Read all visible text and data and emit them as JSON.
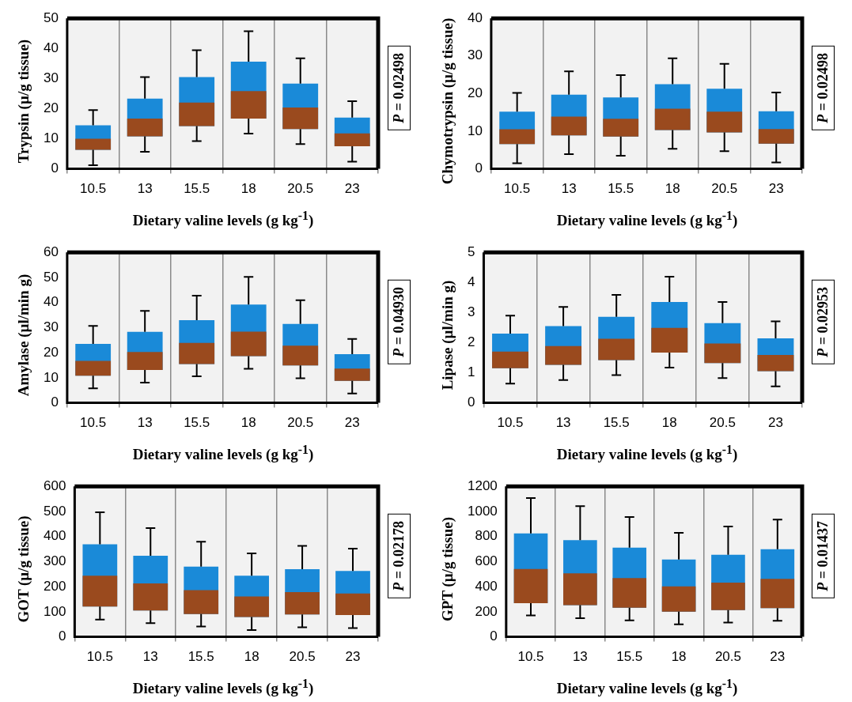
{
  "chart_data": [
    {
      "type": "box",
      "xlabel": "Dietary valine levels (g kg$^{-1}$)",
      "ylabel": "Trypsin (µ/g tissue)",
      "categories": [
        "10.5",
        "13",
        "15.5",
        "18",
        "20.5",
        "23"
      ],
      "ylim": [
        0,
        50
      ],
      "yticks": [
        0,
        10,
        20,
        30,
        40,
        50
      ],
      "grid": "x",
      "annotations": [
        "P = 0.02498"
      ],
      "series": [
        {
          "color": "#1a8ad8",
          "boxes": [
            {
              "low": 1.2,
              "q1": 6.3,
              "median": 10,
              "q3": 14.5,
              "high": 19.5
            },
            {
              "low": 5.7,
              "q1": 10.8,
              "median": 16.7,
              "q3": 23.3,
              "high": 30.5
            },
            {
              "low": 9.2,
              "q1": 14.2,
              "median": 22,
              "q3": 30.5,
              "high": 39.4
            },
            {
              "low": 11.7,
              "q1": 16.7,
              "median": 25.8,
              "q3": 35.6,
              "high": 45.7
            },
            {
              "low": 8.2,
              "q1": 13.2,
              "median": 20.4,
              "q3": 28.3,
              "high": 36.7
            },
            {
              "low": 2.4,
              "q1": 7.5,
              "median": 11.8,
              "q3": 17,
              "high": 22.5
            }
          ]
        }
      ]
    },
    {
      "type": "box",
      "xlabel": "Dietary valine levels (g kg$^{-1}$)",
      "ylabel": "Chymotrypsin (µ/g tissue)",
      "categories": [
        "10.5",
        "13",
        "15.5",
        "18",
        "20.5",
        "23"
      ],
      "ylim": [
        0,
        40
      ],
      "yticks": [
        0,
        10,
        20,
        30,
        40
      ],
      "grid": "x",
      "annotations": [
        "P = 0.02498"
      ],
      "series": [
        {
          "color": "#1a8ad8",
          "boxes": [
            {
              "low": 1.5,
              "q1": 6.6,
              "median": 10.5,
              "q3": 15.2,
              "high": 20.2
            },
            {
              "low": 3.9,
              "q1": 8.9,
              "median": 13.9,
              "q3": 19.7,
              "high": 25.9
            },
            {
              "low": 3.5,
              "q1": 8.6,
              "median": 13.3,
              "q3": 19,
              "high": 24.9
            },
            {
              "low": 5.3,
              "q1": 10.3,
              "median": 16,
              "q3": 22.5,
              "high": 29.4
            },
            {
              "low": 4.7,
              "q1": 9.7,
              "median": 15.2,
              "q3": 21.3,
              "high": 27.9
            },
            {
              "low": 1.7,
              "q1": 6.7,
              "median": 10.6,
              "q3": 15.3,
              "high": 20.3
            }
          ]
        }
      ]
    },
    {
      "type": "box",
      "xlabel": "Dietary valine levels (g kg$^{-1}$)",
      "ylabel": "Amylase (µl/min g)",
      "categories": [
        "10.5",
        "13",
        "15.5",
        "18",
        "20.5",
        "23"
      ],
      "ylim": [
        0,
        60
      ],
      "yticks": [
        0,
        10,
        20,
        30,
        40,
        50,
        60
      ],
      "grid": "x",
      "annotations": [
        "P = 0.04930"
      ],
      "series": [
        {
          "color": "#1a8ad8",
          "boxes": [
            {
              "low": 5.8,
              "q1": 10.8,
              "median": 16.7,
              "q3": 23.5,
              "high": 30.7
            },
            {
              "low": 8.1,
              "q1": 13.1,
              "median": 20.3,
              "q3": 28.3,
              "high": 36.7
            },
            {
              "low": 10.6,
              "q1": 15.5,
              "median": 23.9,
              "q3": 33,
              "high": 42.7
            },
            {
              "low": 13.6,
              "q1": 18.6,
              "median": 28.4,
              "q3": 39.2,
              "high": 50.2
            },
            {
              "low": 9.8,
              "q1": 14.9,
              "median": 22.8,
              "q3": 31.5,
              "high": 40.9
            },
            {
              "low": 3.7,
              "q1": 8.8,
              "median": 13.7,
              "q3": 19.4,
              "high": 25.5
            }
          ]
        }
      ]
    },
    {
      "type": "box",
      "xlabel": "Dietary valine levels (g kg$^{-1}$)",
      "ylabel": "Lipase (µl/min g)",
      "categories": [
        "10.5",
        "13",
        "15.5",
        "18",
        "20.5",
        "23"
      ],
      "ylim": [
        0,
        5
      ],
      "yticks": [
        0,
        1,
        2,
        3,
        4,
        5
      ],
      "grid": "x",
      "annotations": [
        "P = 0.02953"
      ],
      "series": [
        {
          "color": "#1a8ad8",
          "boxes": [
            {
              "low": 0.64,
              "q1": 1.15,
              "median": 1.7,
              "q3": 2.3,
              "high": 2.9
            },
            {
              "low": 0.76,
              "q1": 1.26,
              "median": 1.89,
              "q3": 2.55,
              "high": 3.19
            },
            {
              "low": 0.92,
              "q1": 1.42,
              "median": 2.13,
              "q3": 2.86,
              "high": 3.59
            },
            {
              "low": 1.17,
              "q1": 1.67,
              "median": 2.49,
              "q3": 3.35,
              "high": 4.19
            },
            {
              "low": 0.82,
              "q1": 1.32,
              "median": 1.97,
              "q3": 2.65,
              "high": 3.35
            },
            {
              "low": 0.55,
              "q1": 1.05,
              "median": 1.59,
              "q3": 2.14,
              "high": 2.71
            }
          ]
        }
      ]
    },
    {
      "type": "box",
      "xlabel": "Dietary valine levels (g kg$^{-1}$)",
      "ylabel": "GOT (µ/g tissue)",
      "categories": [
        "10.5",
        "13",
        "15.5",
        "18",
        "20.5",
        "23"
      ],
      "ylim": [
        0,
        600
      ],
      "yticks": [
        0,
        100,
        200,
        300,
        400,
        500,
        600
      ],
      "grid": "x",
      "annotations": [
        "P = 0.02178"
      ],
      "series": [
        {
          "color": "#1a8ad8",
          "boxes": [
            {
              "low": 69,
              "q1": 121,
              "median": 244,
              "q3": 369,
              "high": 497
            },
            {
              "low": 55,
              "q1": 105,
              "median": 213,
              "q3": 323,
              "high": 434
            },
            {
              "low": 41,
              "q1": 91,
              "median": 186,
              "q3": 280,
              "high": 379
            },
            {
              "low": 27,
              "q1": 79,
              "median": 161,
              "q3": 244,
              "high": 333
            },
            {
              "low": 38,
              "q1": 89,
              "median": 178,
              "q3": 270,
              "high": 363
            },
            {
              "low": 35,
              "q1": 87,
              "median": 173,
              "q3": 263,
              "high": 352
            }
          ]
        }
      ]
    },
    {
      "type": "box",
      "xlabel": "Dietary valine levels (g kg$^{-1}$)",
      "ylabel": "GPT (µ/g tissue)",
      "categories": [
        "10.5",
        "13",
        "15.5",
        "18",
        "20.5",
        "23"
      ],
      "ylim": [
        0,
        1200
      ],
      "yticks": [
        0,
        200,
        400,
        600,
        800,
        1000,
        1200
      ],
      "grid": "x",
      "annotations": [
        "P = 0.01437"
      ],
      "series": [
        {
          "color": "#1a8ad8",
          "boxes": [
            {
              "low": 171,
              "q1": 269,
              "median": 541,
              "q3": 824,
              "high": 1107
            },
            {
              "low": 149,
              "q1": 252,
              "median": 506,
              "q3": 771,
              "high": 1042
            },
            {
              "low": 131,
              "q1": 232,
              "median": 468,
              "q3": 711,
              "high": 955
            },
            {
              "low": 100,
              "q1": 200,
              "median": 403,
              "q3": 617,
              "high": 829
            },
            {
              "low": 114,
              "q1": 214,
              "median": 432,
              "q3": 655,
              "high": 880
            },
            {
              "low": 129,
              "q1": 229,
              "median": 463,
              "q3": 699,
              "high": 935
            }
          ]
        }
      ]
    }
  ]
}
